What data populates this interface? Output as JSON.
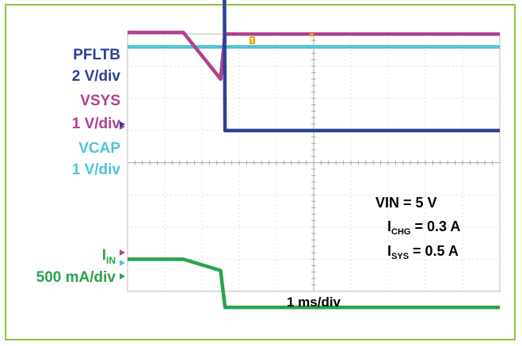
{
  "chart_data": {
    "type": "line",
    "title": "",
    "xlabel": "1 ms/div",
    "x_unit": "ms",
    "x_range_ms": [
      -1.5,
      8.5
    ],
    "grid": true,
    "trigger_marker": "T",
    "channel_labels": [
      {
        "name": "PFLTB",
        "scale": "2 V/div",
        "color": "#2e3f96"
      },
      {
        "name": "VSYS",
        "scale": "1 V/div",
        "color": "#b0408f"
      },
      {
        "name": "VCAP",
        "scale": "1 V/div",
        "color": "#4ec4d6"
      },
      {
        "name": "I",
        "subscript": "IN",
        "scale": "500 mA/div",
        "color": "#2ba24c"
      }
    ],
    "conditions": [
      {
        "text": "VIN = 5 V"
      },
      {
        "prefix": "I",
        "sub": "CHG",
        "suffix": " = 0.3 A"
      },
      {
        "prefix": "I",
        "sub": "SYS",
        "suffix": " = 0.5 A"
      }
    ],
    "series": [
      {
        "name": "PFLTB",
        "color": "#2e3f96",
        "x": [
          -1.5,
          0.0,
          1.0,
          1.1,
          1.12,
          8.5
        ],
        "y": [
          6.8,
          6.8,
          6.0,
          6.0,
          1.0,
          1.0
        ]
      },
      {
        "name": "VSYS",
        "color": "#b0408f",
        "x": [
          -1.5,
          0.0,
          1.0,
          1.12,
          8.5
        ],
        "y": [
          4.05,
          4.05,
          2.6,
          4.0,
          4.0
        ]
      },
      {
        "name": "VCAP",
        "color": "#4ec4d6",
        "x": [
          -1.5,
          8.5
        ],
        "y": [
          3.6,
          3.6
        ]
      },
      {
        "name": "I",
        "color": "#2ba24c",
        "x": [
          -1.5,
          0.0,
          1.0,
          1.12,
          8.5
        ],
        "y": [
          -3.0,
          -3.0,
          -3.35,
          -4.5,
          -4.5
        ]
      }
    ]
  }
}
